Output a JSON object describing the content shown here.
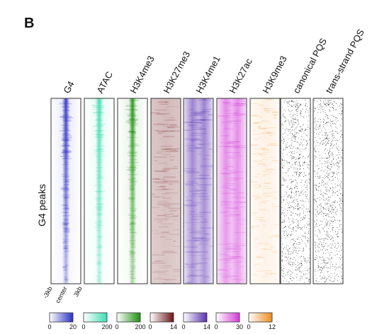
{
  "panel_label": "B",
  "chart_data": {
    "type": "heatmap",
    "row_label": "G4 peaks",
    "x_axis": {
      "left": "-3kb",
      "center": "center",
      "right": "3kb"
    },
    "tracks": [
      {
        "name": "G4",
        "color": "#2b2fc4",
        "scale_min": "0",
        "scale_max": "20",
        "pattern": "center"
      },
      {
        "name": "ATAC",
        "color": "#3fdcb0",
        "scale_min": "0",
        "scale_max": "200",
        "pattern": "center"
      },
      {
        "name": "H3K4me3",
        "color": "#1f8f12",
        "scale_min": "0",
        "scale_max": "200",
        "pattern": "center"
      },
      {
        "name": "H3K27me3",
        "color": "#6b1414",
        "scale_min": "0",
        "scale_max": "14",
        "pattern": "diffuse"
      },
      {
        "name": "H3K4me1",
        "color": "#5a2fb0",
        "scale_min": "0",
        "scale_max": "14",
        "pattern": "broad"
      },
      {
        "name": "H3K27ac",
        "color": "#d23bd8",
        "scale_min": "0",
        "scale_max": "30",
        "pattern": "broad"
      },
      {
        "name": "H3K9me3",
        "color": "#f08a1a",
        "scale_min": "0",
        "scale_max": "12",
        "pattern": "sparse"
      },
      {
        "name": "canonical PQS",
        "color": "#222222",
        "scale_min": "",
        "scale_max": "",
        "pattern": "dots"
      },
      {
        "name": "trans-strand PQS",
        "color": "#222222",
        "scale_min": "",
        "scale_max": "",
        "pattern": "dots"
      }
    ]
  }
}
